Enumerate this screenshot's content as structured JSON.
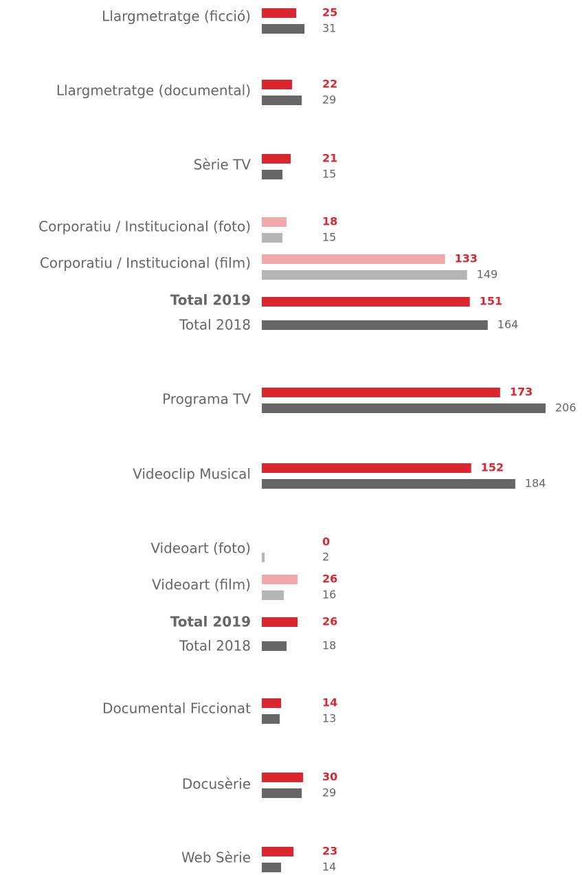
{
  "chart_data": {
    "type": "bar",
    "xlim": [
      0,
      206
    ],
    "palette": [
      "#d9262f",
      "#666666",
      "#f0a8ab",
      "#b5b5b5"
    ],
    "rows": [
      {
        "label": "Llargmetratge (ficció)",
        "values": [
          25,
          31
        ],
        "colors": [
          0,
          1
        ]
      },
      {
        "label": "Llargmetratge (documental)",
        "values": [
          22,
          29
        ],
        "colors": [
          0,
          1
        ]
      },
      {
        "label": "Sèrie TV",
        "values": [
          21,
          15
        ],
        "colors": [
          0,
          1
        ]
      },
      {
        "label": "Corporatiu / Institucional (foto)",
        "values": [
          18,
          15
        ],
        "colors": [
          2,
          3
        ]
      },
      {
        "label": "Corporatiu / Institucional (film)",
        "values": [
          133,
          149
        ],
        "colors": [
          2,
          3
        ]
      },
      {
        "label": "Total 2019",
        "values": [
          151
        ],
        "colors": [
          0
        ],
        "bold": true
      },
      {
        "label": "Total 2018",
        "values": [
          164
        ],
        "colors": [
          1
        ]
      },
      {
        "label": "Programa TV",
        "values": [
          173,
          206
        ],
        "colors": [
          0,
          1
        ]
      },
      {
        "label": "Videoclip Musical",
        "values": [
          152,
          184
        ],
        "colors": [
          0,
          1
        ]
      },
      {
        "label": "Videoart (foto)",
        "values": [
          0,
          2
        ],
        "colors": [
          2,
          3
        ]
      },
      {
        "label": "Videoart (film)",
        "values": [
          26,
          16
        ],
        "colors": [
          2,
          3
        ]
      },
      {
        "label": "Total 2019",
        "values": [
          26
        ],
        "colors": [
          0
        ],
        "bold": true
      },
      {
        "label": "Total 2018",
        "values": [
          18
        ],
        "colors": [
          1
        ]
      },
      {
        "label": "Documental Ficcionat",
        "values": [
          14,
          13
        ],
        "colors": [
          0,
          1
        ]
      },
      {
        "label": "Docusèrie",
        "values": [
          30,
          29
        ],
        "colors": [
          0,
          1
        ]
      },
      {
        "label": "Web Sèrie",
        "values": [
          23,
          14
        ],
        "colors": [
          0,
          1
        ]
      }
    ]
  }
}
